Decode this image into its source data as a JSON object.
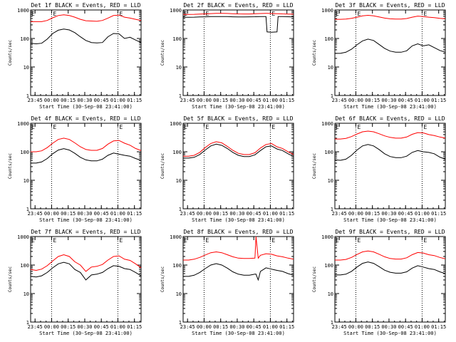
{
  "figure": {
    "background": "#ffffff",
    "events_color": "#000000",
    "lld_color": "#ff0000"
  },
  "chart_data": [
    {
      "type": "line",
      "title": "Det 1f BLACK = Events, RED = LLD",
      "xlabel": "Start Time (30-Sep-08 23:41:00)",
      "ylabel": "Counts/sec",
      "yscale": "log",
      "ylim": [
        1,
        1000
      ],
      "yticks": [
        "1",
        "10",
        "100",
        "1000"
      ],
      "x_ticks": [
        "23:45",
        "00:00",
        "00:15",
        "00:30",
        "00:45",
        "01:00",
        "01:15"
      ],
      "x_range": [
        "23:41",
        "01:21"
      ],
      "x_minutes_since_2341": [
        0,
        5,
        10,
        15,
        20,
        25,
        30,
        35,
        40,
        45,
        50,
        55,
        60,
        65,
        70,
        75,
        80,
        85,
        90,
        95,
        100
      ],
      "markers": [
        {
          "time": "00:00",
          "label": "E"
        },
        {
          "time": "01:00",
          "label": "E"
        }
      ],
      "series": [
        {
          "name": "Events",
          "color": "#000000",
          "values": [
            68,
            65,
            68,
            95,
            150,
            195,
            215,
            200,
            160,
            115,
            85,
            72,
            70,
            72,
            115,
            150,
            145,
            100,
            110,
            88,
            72
          ]
        },
        {
          "name": "LLD",
          "color": "#ff0000",
          "values": [
            390,
            390,
            390,
            430,
            530,
            640,
            680,
            640,
            560,
            470,
            420,
            410,
            400,
            430,
            520,
            640,
            660,
            560,
            520,
            470,
            430
          ]
        }
      ]
    },
    {
      "type": "line",
      "title": "Det 2f BLACK = Events, RED = LLD",
      "xlabel": "Start Time (30-Sep-08 23:41:00)",
      "ylabel": "Counts/sec",
      "yscale": "log",
      "ylim": [
        1,
        1000
      ],
      "yticks": [
        "1",
        "10",
        "100",
        "1000"
      ],
      "x_ticks": [
        "23:45",
        "00:00",
        "00:15",
        "00:30",
        "00:45",
        "01:00",
        "01:15"
      ],
      "x_range": [
        "23:41",
        "01:21"
      ],
      "x_minutes_since_2341": [
        0,
        5,
        10,
        15,
        20,
        25,
        30,
        35,
        40,
        45,
        50,
        55,
        60,
        65,
        70,
        75,
        76,
        80,
        85,
        86,
        90,
        95,
        100
      ],
      "markers": [
        {
          "time": "00:00",
          "label": "E"
        },
        {
          "time": "01:00",
          "label": "E"
        }
      ],
      "series": [
        {
          "name": "Events",
          "color": "#000000",
          "values": [
            560,
            555,
            560,
            570,
            575,
            585,
            590,
            590,
            585,
            575,
            570,
            570,
            575,
            580,
            590,
            590,
            170,
            165,
            170,
            590,
            590,
            580,
            570
          ]
        },
        {
          "name": "LLD",
          "color": "#ff0000",
          "values": [
            700,
            700,
            705,
            715,
            730,
            745,
            760,
            760,
            755,
            740,
            730,
            725,
            725,
            735,
            750,
            760,
            760,
            750,
            740,
            740,
            730,
            720,
            710
          ]
        }
      ]
    },
    {
      "type": "line",
      "title": "Det 3f BLACK = Events, RED = LLD",
      "xlabel": "Start Time (30-Sep-08 23:41:00)",
      "ylabel": "Counts/sec",
      "yscale": "log",
      "ylim": [
        1,
        1000
      ],
      "yticks": [
        "1",
        "10",
        "100",
        "1000"
      ],
      "x_ticks": [
        "23:45",
        "00:00",
        "00:15",
        "00:30",
        "00:45",
        "01:00",
        "01:15"
      ],
      "x_range": [
        "23:41",
        "01:21"
      ],
      "x_minutes_since_2341": [
        0,
        5,
        10,
        15,
        20,
        25,
        30,
        35,
        40,
        45,
        50,
        55,
        60,
        65,
        70,
        75,
        80,
        85,
        90,
        95,
        100
      ],
      "markers": [
        {
          "time": "00:00",
          "label": "E"
        },
        {
          "time": "01:00",
          "label": "E"
        }
      ],
      "series": [
        {
          "name": "Events",
          "color": "#000000",
          "values": [
            30,
            30,
            33,
            42,
            60,
            82,
            95,
            85,
            62,
            45,
            36,
            33,
            33,
            37,
            55,
            65,
            55,
            60,
            48,
            38,
            33
          ]
        },
        {
          "name": "LLD",
          "color": "#ff0000",
          "values": [
            470,
            470,
            480,
            510,
            560,
            620,
            650,
            620,
            570,
            520,
            490,
            480,
            480,
            500,
            560,
            610,
            590,
            560,
            540,
            510,
            490
          ]
        }
      ]
    },
    {
      "type": "line",
      "title": "Det 4f BLACK = Events, RED = LLD",
      "xlabel": "Start Time (30-Sep-08 23:41:00)",
      "ylabel": "Counts/sec",
      "yscale": "log",
      "ylim": [
        1,
        1000
      ],
      "yticks": [
        "1",
        "10",
        "100",
        "1000"
      ],
      "x_ticks": [
        "23:45",
        "00:00",
        "00:15",
        "00:30",
        "00:45",
        "01:00",
        "01:15"
      ],
      "x_range": [
        "23:41",
        "01:21"
      ],
      "x_minutes_since_2341": [
        0,
        5,
        10,
        15,
        20,
        25,
        30,
        35,
        40,
        45,
        50,
        55,
        60,
        65,
        70,
        75,
        80,
        85,
        90,
        95,
        100
      ],
      "markers": [
        {
          "time": "00:00",
          "label": "E"
        },
        {
          "time": "01:00",
          "label": "E"
        }
      ],
      "series": [
        {
          "name": "Events",
          "color": "#000000",
          "values": [
            40,
            40,
            44,
            58,
            85,
            115,
            128,
            115,
            88,
            64,
            52,
            48,
            48,
            55,
            75,
            90,
            82,
            75,
            70,
            58,
            50
          ]
        },
        {
          "name": "LLD",
          "color": "#ff0000",
          "values": [
            100,
            100,
            108,
            140,
            200,
            270,
            300,
            270,
            205,
            150,
            120,
            112,
            112,
            130,
            185,
            240,
            250,
            200,
            170,
            130,
            110
          ]
        }
      ]
    },
    {
      "type": "line",
      "title": "Det 5f BLACK = Events, RED = LLD",
      "xlabel": "Start Time (30-Sep-08 23:41:00)",
      "ylabel": "Counts/sec",
      "yscale": "log",
      "ylim": [
        1,
        1000
      ],
      "yticks": [
        "1",
        "10",
        "100",
        "1000"
      ],
      "x_ticks": [
        "23:45",
        "00:00",
        "00:15",
        "00:30",
        "00:45",
        "01:00",
        "01:15"
      ],
      "x_range": [
        "23:41",
        "01:21"
      ],
      "x_minutes_since_2341": [
        0,
        5,
        10,
        15,
        20,
        25,
        30,
        35,
        40,
        45,
        50,
        55,
        60,
        65,
        70,
        75,
        80,
        85,
        90,
        95,
        100
      ],
      "markers": [
        {
          "time": "00:00",
          "label": "E"
        },
        {
          "time": "01:00",
          "label": "E"
        }
      ],
      "series": [
        {
          "name": "Events",
          "color": "#000000",
          "values": [
            60,
            60,
            64,
            80,
            115,
            160,
            185,
            168,
            130,
            95,
            75,
            68,
            68,
            78,
            110,
            150,
            160,
            125,
            110,
            85,
            68
          ]
        },
        {
          "name": "LLD",
          "color": "#ff0000",
          "values": [
            70,
            70,
            75,
            95,
            140,
            195,
            225,
            205,
            155,
            112,
            88,
            80,
            80,
            92,
            135,
            180,
            195,
            150,
            130,
            100,
            80
          ]
        }
      ]
    },
    {
      "type": "line",
      "title": "Det 6f BLACK = Events, RED = LLD",
      "xlabel": "Start Time (30-Sep-08 23:41:00)",
      "ylabel": "Counts/sec",
      "yscale": "log",
      "ylim": [
        1,
        1000
      ],
      "yticks": [
        "1",
        "10",
        "100",
        "1000"
      ],
      "x_ticks": [
        "23:45",
        "00:00",
        "00:15",
        "00:30",
        "00:45",
        "01:00",
        "01:15"
      ],
      "x_range": [
        "23:41",
        "01:21"
      ],
      "x_minutes_since_2341": [
        0,
        5,
        10,
        15,
        20,
        25,
        30,
        35,
        40,
        45,
        50,
        55,
        60,
        65,
        70,
        75,
        80,
        85,
        90,
        95,
        100
      ],
      "markers": [
        {
          "time": "00:00",
          "label": "E"
        },
        {
          "time": "01:00",
          "label": "E"
        }
      ],
      "series": [
        {
          "name": "Events",
          "color": "#000000",
          "values": [
            52,
            50,
            55,
            75,
            115,
            160,
            180,
            160,
            120,
            85,
            68,
            62,
            62,
            70,
            95,
            110,
            100,
            95,
            85,
            65,
            55
          ]
        },
        {
          "name": "LLD",
          "color": "#ff0000",
          "values": [
            280,
            280,
            295,
            340,
            420,
            500,
            530,
            500,
            430,
            360,
            320,
            300,
            300,
            330,
            410,
            470,
            460,
            400,
            370,
            330,
            300
          ]
        }
      ]
    },
    {
      "type": "line",
      "title": "Det 7f BLACK = Events, RED = LLD",
      "xlabel": "Start Time (30-Sep-08 23:41:00)",
      "ylabel": "Counts/sec",
      "yscale": "log",
      "ylim": [
        1,
        1000
      ],
      "yticks": [
        "1",
        "10",
        "100",
        "1000"
      ],
      "x_ticks": [
        "23:45",
        "00:00",
        "00:15",
        "00:30",
        "00:45",
        "01:00",
        "01:15"
      ],
      "x_range": [
        "23:41",
        "01:21"
      ],
      "x_minutes_since_2341": [
        0,
        5,
        10,
        15,
        20,
        25,
        30,
        35,
        40,
        45,
        50,
        55,
        60,
        65,
        70,
        75,
        80,
        85,
        90,
        95,
        100
      ],
      "markers": [
        {
          "time": "00:00",
          "label": "E"
        },
        {
          "time": "01:00",
          "label": "E"
        }
      ],
      "series": [
        {
          "name": "Events",
          "color": "#000000",
          "values": [
            40,
            38,
            42,
            55,
            80,
            110,
            125,
            110,
            70,
            55,
            30,
            45,
            48,
            55,
            75,
            95,
            90,
            75,
            70,
            55,
            42
          ]
        },
        {
          "name": "LLD",
          "color": "#ff0000",
          "values": [
            70,
            65,
            72,
            95,
            140,
            200,
            230,
            200,
            130,
            100,
            60,
            85,
            90,
            105,
            150,
            200,
            210,
            160,
            145,
            110,
            80
          ]
        }
      ]
    },
    {
      "type": "line",
      "title": "Det 8f BLACK = Events, RED = LLD",
      "xlabel": "Start Time (30-Sep-08 23:41:00)",
      "ylabel": "Counts/sec",
      "yscale": "log",
      "ylim": [
        1,
        1000
      ],
      "yticks": [
        "1",
        "10",
        "100",
        "1000"
      ],
      "x_ticks": [
        "23:45",
        "00:00",
        "00:15",
        "00:30",
        "00:45",
        "01:00",
        "01:15"
      ],
      "x_range": [
        "23:41",
        "01:21"
      ],
      "x_minutes_since_2341": [
        0,
        5,
        10,
        15,
        20,
        25,
        30,
        35,
        40,
        45,
        50,
        55,
        60,
        65,
        66,
        68,
        70,
        75,
        80,
        85,
        90,
        95,
        100
      ],
      "markers": [
        {
          "time": "00:00",
          "label": "E"
        },
        {
          "time": "01:00",
          "label": "E"
        }
      ],
      "series": [
        {
          "name": "Events",
          "color": "#000000",
          "values": [
            40,
            40,
            44,
            55,
            75,
            100,
            112,
            100,
            78,
            58,
            48,
            44,
            44,
            48,
            48,
            30,
            60,
            80,
            72,
            65,
            60,
            50,
            44
          ]
        },
        {
          "name": "LLD",
          "color": "#ff0000",
          "values": [
            150,
            150,
            160,
            185,
            225,
            270,
            290,
            270,
            230,
            195,
            175,
            170,
            170,
            175,
            1000,
            175,
            220,
            250,
            240,
            210,
            195,
            175,
            160
          ]
        }
      ]
    },
    {
      "type": "line",
      "title": "Det 9f BLACK = Events, RED = LLD",
      "xlabel": "Start Time (30-Sep-08 23:41:00)",
      "ylabel": "Counts/sec",
      "yscale": "log",
      "ylim": [
        1,
        1000
      ],
      "yticks": [
        "1",
        "10",
        "100",
        "1000"
      ],
      "x_ticks": [
        "23:45",
        "00:00",
        "00:15",
        "00:30",
        "00:45",
        "01:00",
        "01:15"
      ],
      "x_range": [
        "23:41",
        "01:21"
      ],
      "x_minutes_since_2341": [
        0,
        5,
        10,
        15,
        20,
        25,
        30,
        35,
        40,
        45,
        50,
        55,
        60,
        65,
        70,
        75,
        80,
        85,
        90,
        95,
        100
      ],
      "markers": [
        {
          "time": "00:00",
          "label": "E"
        },
        {
          "time": "01:00",
          "label": "E"
        }
      ],
      "series": [
        {
          "name": "Events",
          "color": "#000000",
          "values": [
            45,
            45,
            48,
            60,
            85,
            115,
            128,
            115,
            88,
            66,
            56,
            52,
            52,
            58,
            78,
            95,
            85,
            75,
            70,
            58,
            50
          ]
        },
        {
          "name": "LLD",
          "color": "#ff0000",
          "values": [
            150,
            150,
            158,
            185,
            235,
            290,
            310,
            290,
            240,
            195,
            170,
            162,
            162,
            180,
            230,
            275,
            265,
            230,
            215,
            185,
            165
          ]
        }
      ]
    }
  ]
}
